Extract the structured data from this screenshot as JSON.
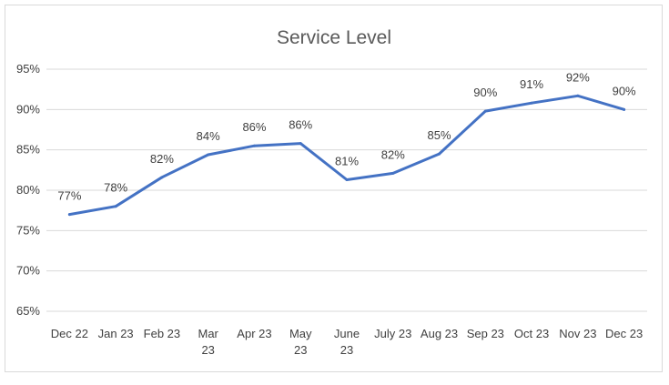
{
  "chart_data": {
    "type": "line",
    "title": "Service Level",
    "xlabel": "",
    "ylabel": "",
    "ylim": [
      0.65,
      0.95
    ],
    "y_ticks": [
      "65%",
      "70%",
      "75%",
      "80%",
      "85%",
      "90%",
      "95%"
    ],
    "y_tick_values": [
      0.65,
      0.7,
      0.75,
      0.8,
      0.85,
      0.9,
      0.95
    ],
    "grid": "horizontal",
    "legend": "none",
    "categories": [
      [
        "Dec 22"
      ],
      [
        "Jan 23"
      ],
      [
        "Feb 23"
      ],
      [
        "Mar",
        "23"
      ],
      [
        "Apr 23"
      ],
      [
        "May",
        "23"
      ],
      [
        "June",
        "23"
      ],
      [
        "July 23"
      ],
      [
        "Aug 23"
      ],
      [
        "Sep 23"
      ],
      [
        "Oct 23"
      ],
      [
        "Nov 23"
      ],
      [
        "Dec 23"
      ]
    ],
    "series": [
      {
        "values": [
          0.77,
          0.78,
          0.816,
          0.844,
          0.855,
          0.858,
          0.813,
          0.821,
          0.845,
          0.898,
          0.908,
          0.917,
          0.9
        ],
        "labels": [
          "77%",
          "78%",
          "82%",
          "84%",
          "86%",
          "86%",
          "81%",
          "82%",
          "85%",
          "90%",
          "91%",
          "92%",
          "90%"
        ],
        "color": "#4472c4"
      }
    ],
    "colors": {
      "grid": "#d9d9d9",
      "axis_line": "#d9d9d9",
      "text": "#404040",
      "title": "#595959"
    }
  }
}
